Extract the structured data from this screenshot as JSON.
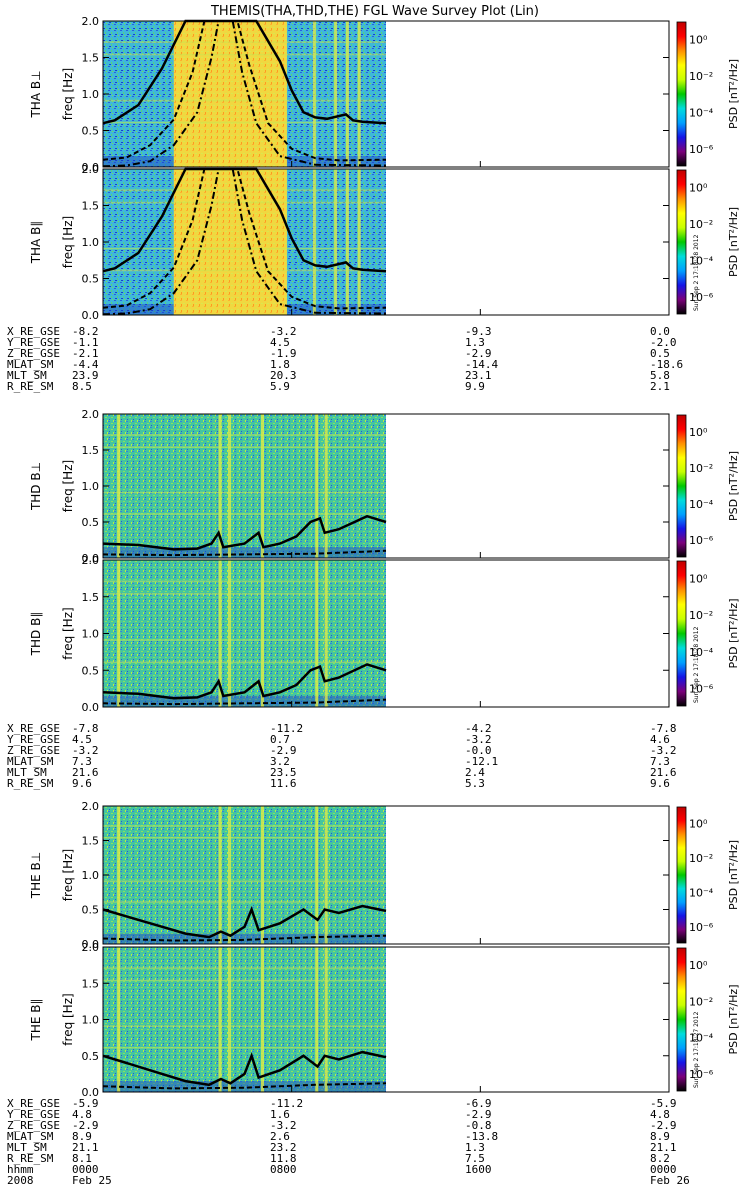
{
  "title": "THEMIS(THA,THD,THE) FGL Wave Survey Plot (Lin)",
  "panels": [
    {
      "probe": "THA",
      "label": "THA B⊥",
      "ylabel": "freq [Hz]",
      "stamp": ""
    },
    {
      "probe": "THA",
      "label": "THA B∥",
      "ylabel": "freq [Hz]",
      "stamp": "Sun Sep  2 17:18:28 2012"
    },
    {
      "probe": "THD",
      "label": "THD B⊥",
      "ylabel": "freq [Hz]",
      "stamp": ""
    },
    {
      "probe": "THD",
      "label": "THD B∥",
      "ylabel": "freq [Hz]",
      "stamp": "Sun Sep  2 17:18:28 2012"
    },
    {
      "probe": "THE",
      "label": "THE B⊥",
      "ylabel": "freq [Hz]",
      "stamp": ""
    },
    {
      "probe": "THE",
      "label": "THE B∥",
      "ylabel": "freq [Hz]",
      "stamp": "Sun Sep  2 17:18:27 2012"
    }
  ],
  "colorbar": {
    "label": "PSD [nT²/Hz]",
    "ticks": [
      "10⁰",
      "10⁻²",
      "10⁻⁴",
      "10⁻⁶"
    ],
    "colors": [
      "#000000",
      "#7b007b",
      "#1515e6",
      "#00a0ff",
      "#00dcdc",
      "#00c800",
      "#c8ff00",
      "#ffff00",
      "#ff9000",
      "#ff0000",
      "#c00000"
    ]
  },
  "ephemeris": [
    {
      "labels": [
        "X_RE_GSE",
        "Y_RE_GSE",
        "Z_RE_GSE",
        "MLAT_SM",
        "MLT_SM",
        "R_RE_SM"
      ],
      "columns": [
        [
          "-8.2",
          "-1.1",
          "-2.1",
          "-4.4",
          "23.9",
          "8.5"
        ],
        [
          "-3.2",
          "4.5",
          "-1.9",
          "1.8",
          "20.3",
          "5.9"
        ],
        [
          "-9.3",
          "1.3",
          "-2.9",
          "-14.4",
          "23.1",
          "9.9"
        ],
        [
          "0.0",
          "-2.0",
          "0.5",
          "-18.6",
          "5.8",
          "2.1"
        ]
      ]
    },
    {
      "labels": [
        "X_RE_GSE",
        "Y_RE_GSE",
        "Z_RE_GSE",
        "MLAT_SM",
        "MLT_SM",
        "R_RE_SM"
      ],
      "columns": [
        [
          "-7.8",
          "4.5",
          "-3.2",
          "7.3",
          "21.6",
          "9.6"
        ],
        [
          "-11.2",
          "0.7",
          "-2.9",
          "3.2",
          "23.5",
          "11.6"
        ],
        [
          "-4.2",
          "-3.2",
          "-0.0",
          "-12.1",
          "2.4",
          "5.3"
        ],
        [
          "-7.8",
          "4.6",
          "-3.2",
          "7.3",
          "21.6",
          "9.6"
        ]
      ]
    },
    {
      "labels": [
        "X_RE_GSE",
        "Y_RE_GSE",
        "Z_RE_GSE",
        "MLAT_SM",
        "MLT_SM",
        "R_RE_SM",
        "hhmm",
        "2008"
      ],
      "columns": [
        [
          "-5.9",
          "4.8",
          "-2.9",
          "8.9",
          "21.1",
          "8.1",
          "0000",
          "Feb 25"
        ],
        [
          "-11.2",
          "1.6",
          "-3.2",
          "2.6",
          "23.2",
          "11.8",
          "0800",
          ""
        ],
        [
          "-6.9",
          "-2.9",
          "-0.8",
          "-13.8",
          "1.3",
          "7.5",
          "1600",
          ""
        ],
        [
          "-5.9",
          "4.8",
          "-2.9",
          "8.9",
          "21.1",
          "8.2",
          "0000",
          "Feb 26"
        ]
      ]
    }
  ],
  "chart_data": {
    "type": "heatmap",
    "title": "THEMIS(THA,THD,THE) FGL Wave Survey Plot (Lin)",
    "xlabel": "hhmm",
    "x_ticks": [
      "0000",
      "0800",
      "1600",
      "0000"
    ],
    "x_dates": [
      "2008 Feb 25",
      "",
      "",
      "Feb 26"
    ],
    "xlim_hours": [
      0,
      24
    ],
    "data_end_hours": 12,
    "ylabel": "freq [Hz]",
    "ylim": [
      0,
      2.0
    ],
    "y_ticks": [
      "0.0",
      "0.5",
      "1.0",
      "1.5",
      "2.0"
    ],
    "zlabel": "PSD [nT²/Hz]",
    "zlim_log10": [
      -7,
      1
    ],
    "z_ticks": [
      "10⁰",
      "10⁻²",
      "10⁻⁴",
      "10⁻⁶"
    ],
    "series": [
      {
        "panel": "THA B⊥",
        "solid_line": [
          [
            0,
            0.6
          ],
          [
            0.5,
            0.64
          ],
          [
            1.5,
            0.85
          ],
          [
            2.5,
            1.35
          ],
          [
            3.5,
            2.0
          ],
          [
            6.5,
            2.0
          ],
          [
            7.5,
            1.45
          ],
          [
            8,
            1.05
          ],
          [
            8.5,
            0.75
          ],
          [
            9,
            0.68
          ],
          [
            9.5,
            0.66
          ],
          [
            10.3,
            0.72
          ],
          [
            10.6,
            0.64
          ],
          [
            11,
            0.62
          ],
          [
            12,
            0.6
          ]
        ],
        "dashed_line": [
          [
            0,
            0.1
          ],
          [
            1,
            0.13
          ],
          [
            2,
            0.3
          ],
          [
            3,
            0.65
          ],
          [
            3.8,
            1.3
          ],
          [
            4.3,
            2.0
          ],
          [
            5.7,
            2.0
          ],
          [
            6.2,
            1.4
          ],
          [
            7,
            0.6
          ],
          [
            8,
            0.25
          ],
          [
            9,
            0.12
          ],
          [
            10,
            0.09
          ],
          [
            12,
            0.1
          ]
        ],
        "dashdot_line": [
          [
            0,
            0.01
          ],
          [
            1,
            0.02
          ],
          [
            2,
            0.08
          ],
          [
            3,
            0.3
          ],
          [
            4,
            0.75
          ],
          [
            4.6,
            1.5
          ],
          [
            4.9,
            2.0
          ],
          [
            5.5,
            2.0
          ],
          [
            5.9,
            1.3
          ],
          [
            6.5,
            0.6
          ],
          [
            7.5,
            0.15
          ],
          [
            9,
            0.03
          ],
          [
            12,
            0.02
          ]
        ]
      },
      {
        "panel": "THA B∥",
        "solid_line": [
          [
            0,
            0.6
          ],
          [
            0.5,
            0.64
          ],
          [
            1.5,
            0.85
          ],
          [
            2.5,
            1.35
          ],
          [
            3.5,
            2.0
          ],
          [
            6.5,
            2.0
          ],
          [
            7.5,
            1.45
          ],
          [
            8,
            1.05
          ],
          [
            8.5,
            0.75
          ],
          [
            9,
            0.68
          ],
          [
            9.5,
            0.66
          ],
          [
            10.3,
            0.72
          ],
          [
            10.6,
            0.64
          ],
          [
            11,
            0.62
          ],
          [
            12,
            0.6
          ]
        ],
        "dashed_line": [
          [
            0,
            0.1
          ],
          [
            1,
            0.13
          ],
          [
            2,
            0.3
          ],
          [
            3,
            0.65
          ],
          [
            3.8,
            1.3
          ],
          [
            4.3,
            2.0
          ],
          [
            5.7,
            2.0
          ],
          [
            6.2,
            1.4
          ],
          [
            7,
            0.6
          ],
          [
            8,
            0.25
          ],
          [
            9,
            0.12
          ],
          [
            10,
            0.09
          ],
          [
            12,
            0.1
          ]
        ],
        "dashdot_line": [
          [
            0,
            0.01
          ],
          [
            1,
            0.02
          ],
          [
            2,
            0.08
          ],
          [
            3,
            0.3
          ],
          [
            4,
            0.75
          ],
          [
            4.6,
            1.5
          ],
          [
            4.9,
            2.0
          ],
          [
            5.5,
            2.0
          ],
          [
            5.9,
            1.3
          ],
          [
            6.5,
            0.6
          ],
          [
            7.5,
            0.15
          ],
          [
            9,
            0.03
          ],
          [
            12,
            0.02
          ]
        ]
      },
      {
        "panel": "THD B⊥",
        "solid_line": [
          [
            0,
            0.2
          ],
          [
            1.5,
            0.18
          ],
          [
            3,
            0.12
          ],
          [
            4,
            0.13
          ],
          [
            4.6,
            0.2
          ],
          [
            4.9,
            0.35
          ],
          [
            5.1,
            0.15
          ],
          [
            6,
            0.2
          ],
          [
            6.6,
            0.35
          ],
          [
            6.8,
            0.15
          ],
          [
            7.5,
            0.2
          ],
          [
            8.2,
            0.3
          ],
          [
            8.8,
            0.5
          ],
          [
            9.2,
            0.55
          ],
          [
            9.4,
            0.35
          ],
          [
            10,
            0.4
          ],
          [
            11.2,
            0.58
          ],
          [
            12,
            0.5
          ]
        ],
        "dashed_line": [
          [
            0,
            0.05
          ],
          [
            3,
            0.04
          ],
          [
            6,
            0.05
          ],
          [
            9,
            0.06
          ],
          [
            12,
            0.1
          ]
        ]
      },
      {
        "panel": "THD B∥",
        "solid_line": [
          [
            0,
            0.2
          ],
          [
            1.5,
            0.18
          ],
          [
            3,
            0.12
          ],
          [
            4,
            0.13
          ],
          [
            4.6,
            0.2
          ],
          [
            4.9,
            0.35
          ],
          [
            5.1,
            0.15
          ],
          [
            6,
            0.2
          ],
          [
            6.6,
            0.35
          ],
          [
            6.8,
            0.15
          ],
          [
            7.5,
            0.2
          ],
          [
            8.2,
            0.3
          ],
          [
            8.8,
            0.5
          ],
          [
            9.2,
            0.55
          ],
          [
            9.4,
            0.35
          ],
          [
            10,
            0.4
          ],
          [
            11.2,
            0.58
          ],
          [
            12,
            0.5
          ]
        ],
        "dashed_line": [
          [
            0,
            0.05
          ],
          [
            3,
            0.04
          ],
          [
            6,
            0.05
          ],
          [
            9,
            0.06
          ],
          [
            12,
            0.1
          ]
        ]
      },
      {
        "panel": "THE B⊥",
        "solid_line": [
          [
            0,
            0.5
          ],
          [
            1,
            0.4
          ],
          [
            2,
            0.3
          ],
          [
            3.5,
            0.15
          ],
          [
            4.5,
            0.1
          ],
          [
            5,
            0.18
          ],
          [
            5.4,
            0.12
          ],
          [
            6,
            0.25
          ],
          [
            6.3,
            0.5
          ],
          [
            6.6,
            0.2
          ],
          [
            7.5,
            0.3
          ],
          [
            8.5,
            0.5
          ],
          [
            9.1,
            0.35
          ],
          [
            9.4,
            0.5
          ],
          [
            10,
            0.45
          ],
          [
            11,
            0.55
          ],
          [
            12,
            0.48
          ]
        ],
        "dashed_line": [
          [
            0,
            0.08
          ],
          [
            3,
            0.05
          ],
          [
            6,
            0.06
          ],
          [
            9,
            0.1
          ],
          [
            12,
            0.12
          ]
        ]
      },
      {
        "panel": "THE B∥",
        "solid_line": [
          [
            0,
            0.5
          ],
          [
            1,
            0.4
          ],
          [
            2,
            0.3
          ],
          [
            3.5,
            0.15
          ],
          [
            4.5,
            0.1
          ],
          [
            5,
            0.18
          ],
          [
            5.4,
            0.12
          ],
          [
            6,
            0.25
          ],
          [
            6.3,
            0.5
          ],
          [
            6.6,
            0.2
          ],
          [
            7.5,
            0.3
          ],
          [
            8.5,
            0.5
          ],
          [
            9.1,
            0.35
          ],
          [
            9.4,
            0.5
          ],
          [
            10,
            0.45
          ],
          [
            11,
            0.55
          ],
          [
            12,
            0.48
          ]
        ],
        "dashed_line": [
          [
            0,
            0.08
          ],
          [
            3,
            0.05
          ],
          [
            6,
            0.06
          ],
          [
            9,
            0.1
          ],
          [
            12,
            0.12
          ]
        ]
      }
    ]
  }
}
